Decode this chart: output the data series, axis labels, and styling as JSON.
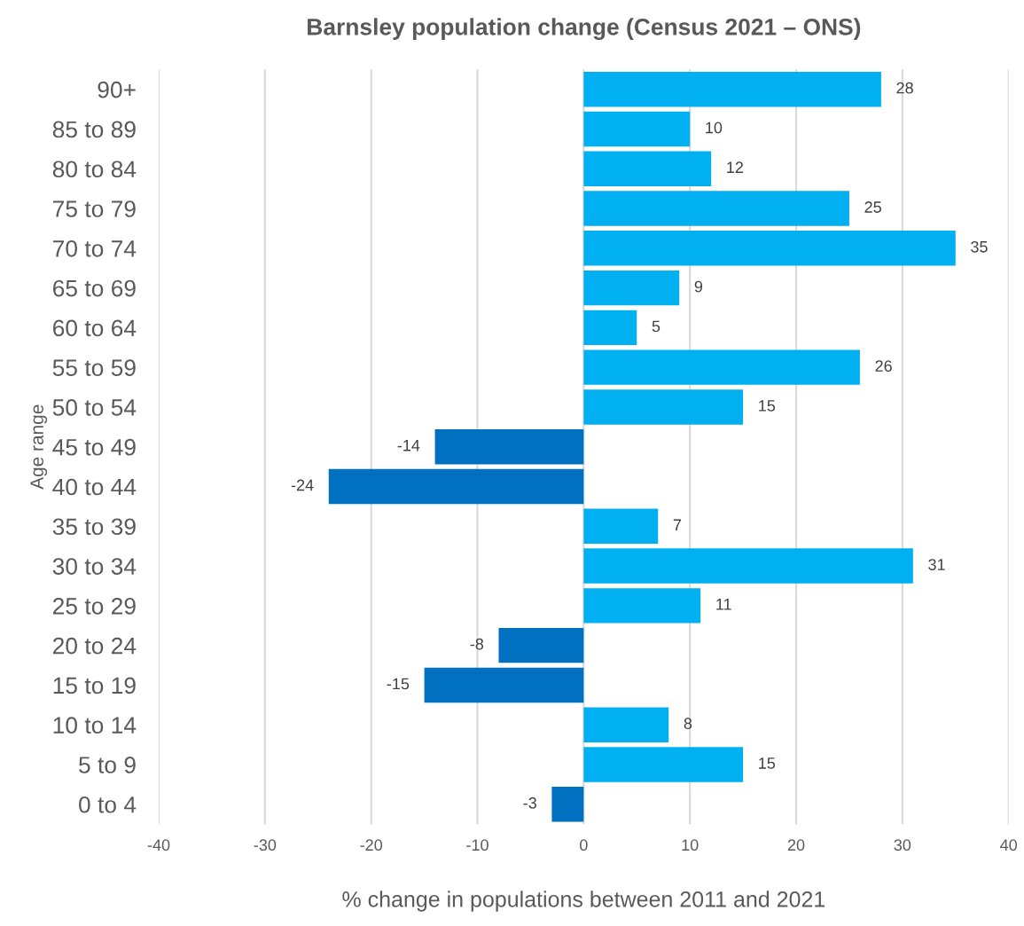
{
  "chart_data": {
    "type": "bar",
    "orientation": "horizontal",
    "title": "Barnsley population change (Census 2021 – ONS)",
    "xlabel": "% change in populations between 2011 and 2021",
    "ylabel": "Age range",
    "categories": [
      "90+",
      "85 to 89",
      "80 to 84",
      "75 to 79",
      "70 to 74",
      "65 to 69",
      "60 to 64",
      "55 to 59",
      "50 to 54",
      "45 to 49",
      "40 to 44",
      "35 to 39",
      "30 to 34",
      "25 to 29",
      "20 to 24",
      "15 to 19",
      "10 to 14",
      "5 to 9",
      "0 to 4"
    ],
    "values": [
      28,
      10,
      12,
      25,
      35,
      9,
      5,
      26,
      15,
      -14,
      -24,
      7,
      31,
      11,
      -8,
      -15,
      8,
      15,
      -3
    ],
    "colors": [
      "#00b0f0",
      "#00b0f0",
      "#00b0f0",
      "#00b0f0",
      "#00b0f0",
      "#00b0f0",
      "#00b0f0",
      "#00b0f0",
      "#00b0f0",
      "#0070c0",
      "#0070c0",
      "#00b0f0",
      "#00b0f0",
      "#00b0f0",
      "#0070c0",
      "#0070c0",
      "#00b0f0",
      "#00b0f0",
      "#0070c0"
    ],
    "xlim": [
      -40,
      40
    ],
    "xticks": [
      -40,
      -30,
      -20,
      -10,
      0,
      10,
      20,
      30,
      40
    ],
    "grid": "x",
    "data_labels": true,
    "legend": false
  }
}
